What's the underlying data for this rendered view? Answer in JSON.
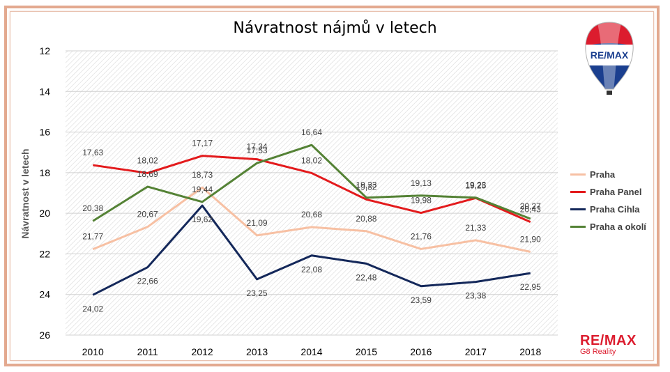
{
  "chart_data": {
    "type": "line",
    "title": "Návratnost nájmů v letech",
    "ylabel": "Návratnost v letech",
    "xlabel": "",
    "categories": [
      "2010",
      "2011",
      "2012",
      "2013",
      "2014",
      "2015",
      "2016",
      "2017",
      "2018"
    ],
    "ylim": [
      26,
      12
    ],
    "y_inverted": true,
    "yticks": [
      "12",
      "14",
      "16",
      "18",
      "20",
      "22",
      "24",
      "26"
    ],
    "grid": true,
    "legend_position": "right",
    "series": [
      {
        "name": "Praha",
        "color": "#f7c0a3",
        "values": [
          21.77,
          20.67,
          18.73,
          21.09,
          20.68,
          20.88,
          21.76,
          21.33,
          21.9
        ],
        "labels": [
          "21,77",
          "20,67",
          "18,73",
          "21,09",
          "20,68",
          "20,88",
          "21,76",
          "21,33",
          "21,90"
        ]
      },
      {
        "name": "Praha Panel",
        "color": "#e31a1c",
        "values": [
          17.63,
          18.02,
          17.17,
          17.34,
          18.02,
          19.32,
          19.98,
          19.25,
          20.43
        ],
        "labels": [
          "17,63",
          "18,02",
          "17,17",
          "17,34",
          "18,02",
          "19,32",
          "19,98",
          "19,25",
          "20,43"
        ]
      },
      {
        "name": "Praha Cihla",
        "color": "#14285a",
        "values": [
          24.02,
          22.66,
          19.62,
          23.25,
          22.08,
          22.48,
          23.59,
          23.38,
          22.95
        ],
        "labels": [
          "24,02",
          "22,66",
          "19,62",
          "23,25",
          "22,08",
          "22,48",
          "23,59",
          "23,38",
          "22,95"
        ]
      },
      {
        "name": "Praha a okolí",
        "color": "#548235",
        "values": [
          20.38,
          18.69,
          19.44,
          17.53,
          16.64,
          19.23,
          19.13,
          19.23,
          20.27
        ],
        "labels": [
          "20,38",
          "18,69",
          "19,44",
          "17,53",
          "16,64",
          "19,23",
          "19,13",
          "19,23",
          "20,27"
        ]
      }
    ]
  },
  "logos": {
    "balloon_text": "RE/MAX",
    "bottom_text": "RE/MAX",
    "bottom_sub": "G8 Reality"
  }
}
